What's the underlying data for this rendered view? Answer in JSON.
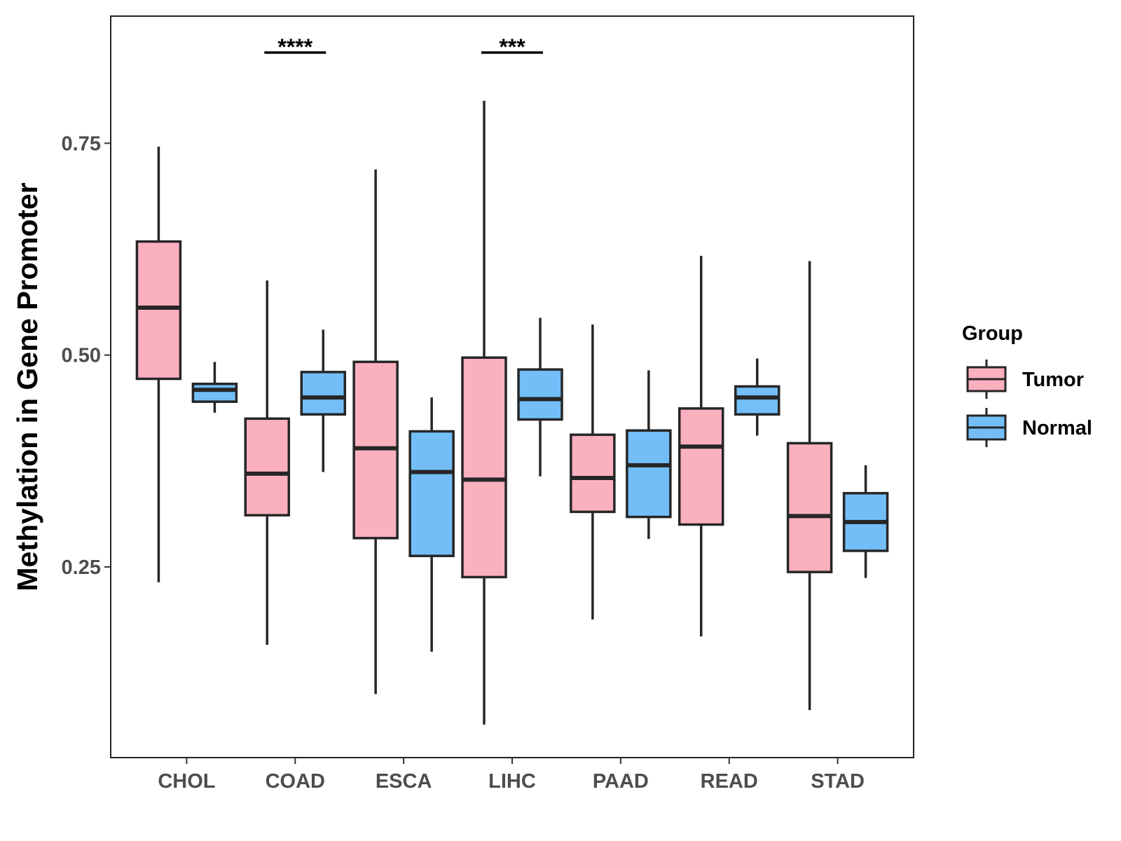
{
  "chart_data": {
    "type": "boxplot",
    "title": "",
    "xlabel": "",
    "ylabel": "Methylation in Gene Promoter",
    "ylim": [
      0.025,
      0.9
    ],
    "yticks": [
      0.25,
      0.5,
      0.75
    ],
    "ytick_labels": [
      "0.25",
      "0.50",
      "0.75"
    ],
    "categories": [
      "CHOL",
      "COAD",
      "ESCA",
      "LIHC",
      "PAAD",
      "READ",
      "STAD"
    ],
    "legend": {
      "title": "Group",
      "position": "right",
      "entries": [
        {
          "name": "Tumor",
          "color": "#fbb0c0"
        },
        {
          "name": "Normal",
          "color": "#73bef7"
        }
      ]
    },
    "series": [
      {
        "name": "Tumor",
        "color": "#fbb0c0",
        "boxes": [
          {
            "category": "CHOL",
            "min": 0.232,
            "q1": 0.472,
            "median": 0.556,
            "q3": 0.634,
            "max": 0.746
          },
          {
            "category": "COAD",
            "min": 0.158,
            "q1": 0.311,
            "median": 0.36,
            "q3": 0.425,
            "max": 0.588
          },
          {
            "category": "ESCA",
            "min": 0.1,
            "q1": 0.284,
            "median": 0.39,
            "q3": 0.492,
            "max": 0.719
          },
          {
            "category": "LIHC",
            "min": 0.064,
            "q1": 0.238,
            "median": 0.353,
            "q3": 0.497,
            "max": 0.8
          },
          {
            "category": "PAAD",
            "min": 0.188,
            "q1": 0.315,
            "median": 0.355,
            "q3": 0.406,
            "max": 0.536
          },
          {
            "category": "READ",
            "min": 0.168,
            "q1": 0.3,
            "median": 0.392,
            "q3": 0.437,
            "max": 0.617
          },
          {
            "category": "STAD",
            "min": 0.081,
            "q1": 0.244,
            "median": 0.31,
            "q3": 0.396,
            "max": 0.611
          }
        ]
      },
      {
        "name": "Normal",
        "color": "#73bef7",
        "boxes": [
          {
            "category": "CHOL",
            "min": 0.432,
            "q1": 0.445,
            "median": 0.459,
            "q3": 0.466,
            "max": 0.492
          },
          {
            "category": "COAD",
            "min": 0.362,
            "q1": 0.43,
            "median": 0.45,
            "q3": 0.48,
            "max": 0.53
          },
          {
            "category": "ESCA",
            "min": 0.15,
            "q1": 0.263,
            "median": 0.362,
            "q3": 0.41,
            "max": 0.45
          },
          {
            "category": "LIHC",
            "min": 0.357,
            "q1": 0.424,
            "median": 0.448,
            "q3": 0.483,
            "max": 0.544
          },
          {
            "category": "PAAD",
            "min": 0.283,
            "q1": 0.309,
            "median": 0.37,
            "q3": 0.411,
            "max": 0.482
          },
          {
            "category": "READ",
            "min": 0.405,
            "q1": 0.43,
            "median": 0.45,
            "q3": 0.463,
            "max": 0.496
          },
          {
            "category": "STAD",
            "min": 0.237,
            "q1": 0.269,
            "median": 0.303,
            "q3": 0.337,
            "max": 0.37
          }
        ]
      }
    ],
    "significance": [
      {
        "category": "COAD",
        "label": "****"
      },
      {
        "category": "LIHC",
        "label": "***"
      }
    ]
  }
}
